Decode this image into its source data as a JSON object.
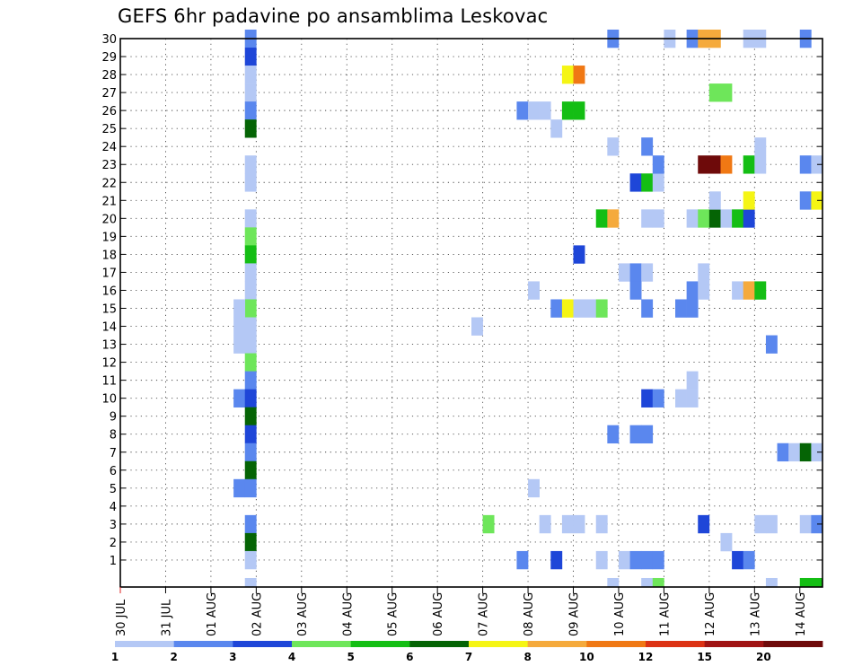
{
  "chart_data": {
    "type": "heatmap",
    "title": "GEFS 6hr padavine po ansamblima Leskovac",
    "y_labels": [
      "1",
      "2",
      "3",
      "4",
      "5",
      "6",
      "7",
      "8",
      "9",
      "10",
      "11",
      "12",
      "13",
      "14",
      "15",
      "16",
      "17",
      "18",
      "19",
      "20",
      "21",
      "22",
      "23",
      "24",
      "25",
      "26",
      "27",
      "28",
      "29",
      "30"
    ],
    "x_labels": [
      "30 JUL",
      "31 JUL",
      "01 AUG",
      "02 AUG",
      "03 AUG",
      "04 AUG",
      "05 AUG",
      "06 AUG",
      "07 AUG",
      "08 AUG",
      "09 AUG",
      "10 AUG",
      "11 AUG",
      "12 AUG",
      "13 AUG",
      "14 AUG"
    ],
    "time_steps": 62,
    "steps_per_day": 4,
    "legend": {
      "labels": [
        "1",
        "2",
        "3",
        "4",
        "5",
        "6",
        "7",
        "8",
        "10",
        "12",
        "15",
        "20"
      ],
      "colors": [
        "#b4c8f5",
        "#5a87ee",
        "#1e46d8",
        "#6ee65a",
        "#14be14",
        "#056405",
        "#f5f514",
        "#f5aa3c",
        "#f07814",
        "#dc3214",
        "#a01414",
        "#6e0a0a"
      ]
    },
    "cells": [
      {
        "x": 11,
        "m": 30,
        "c": 1
      },
      {
        "x": 11,
        "m": 29,
        "c": 2
      },
      {
        "x": 11,
        "m": 28,
        "c": 0
      },
      {
        "x": 11,
        "m": 27,
        "c": 0
      },
      {
        "x": 11,
        "m": 26,
        "c": 1
      },
      {
        "x": 11,
        "m": 25,
        "c": 5
      },
      {
        "x": 11,
        "m": 23,
        "c": 0
      },
      {
        "x": 11,
        "m": 22,
        "c": 0
      },
      {
        "x": 11,
        "m": 20,
        "c": 0
      },
      {
        "x": 11,
        "m": 19,
        "c": 3
      },
      {
        "x": 11,
        "m": 18,
        "c": 4
      },
      {
        "x": 11,
        "m": 17,
        "c": 0
      },
      {
        "x": 11,
        "m": 16,
        "c": 0
      },
      {
        "x": 11,
        "m": 15,
        "c": 3
      },
      {
        "x": 10,
        "m": 15,
        "c": 0
      },
      {
        "x": 10,
        "m": 14,
        "c": 0
      },
      {
        "x": 11,
        "m": 14,
        "c": 0
      },
      {
        "x": 10,
        "m": 13,
        "c": 0
      },
      {
        "x": 11,
        "m": 13,
        "c": 0
      },
      {
        "x": 11,
        "m": 12,
        "c": 3
      },
      {
        "x": 11,
        "m": 11,
        "c": 1
      },
      {
        "x": 10,
        "m": 10,
        "c": 1
      },
      {
        "x": 11,
        "m": 10,
        "c": 2
      },
      {
        "x": 11,
        "m": 9,
        "c": 5
      },
      {
        "x": 11,
        "m": 8,
        "c": 2
      },
      {
        "x": 11,
        "m": 7,
        "c": 1
      },
      {
        "x": 11,
        "m": 6,
        "c": 5
      },
      {
        "x": 10,
        "m": 5,
        "c": 1
      },
      {
        "x": 11,
        "m": 5,
        "c": 1
      },
      {
        "x": 11,
        "m": 3,
        "c": 1
      },
      {
        "x": 11,
        "m": 2,
        "c": 5
      },
      {
        "x": 11,
        "m": 1,
        "c": 0
      },
      {
        "x": 11,
        "m": 0,
        "c": 0
      },
      {
        "x": 31,
        "m": 14,
        "c": 0
      },
      {
        "x": 32,
        "m": 3,
        "c": 3
      },
      {
        "x": 35,
        "m": 26,
        "c": 1
      },
      {
        "x": 36,
        "m": 26,
        "c": 0
      },
      {
        "x": 37,
        "m": 26,
        "c": 0
      },
      {
        "x": 36,
        "m": 16,
        "c": 0
      },
      {
        "x": 36,
        "m": 5,
        "c": 0
      },
      {
        "x": 37,
        "m": 3,
        "c": 0
      },
      {
        "x": 35,
        "m": 1,
        "c": 1
      },
      {
        "x": 38,
        "m": 25,
        "c": 0
      },
      {
        "x": 38,
        "m": 15,
        "c": 1
      },
      {
        "x": 38,
        "m": 1,
        "c": 2
      },
      {
        "x": 39,
        "m": 28,
        "c": 6
      },
      {
        "x": 40,
        "m": 28,
        "c": 8
      },
      {
        "x": 39,
        "m": 26,
        "c": 4
      },
      {
        "x": 40,
        "m": 26,
        "c": 4
      },
      {
        "x": 40,
        "m": 18,
        "c": 2
      },
      {
        "x": 39,
        "m": 15,
        "c": 6
      },
      {
        "x": 40,
        "m": 15,
        "c": 0
      },
      {
        "x": 39,
        "m": 3,
        "c": 0
      },
      {
        "x": 40,
        "m": 3,
        "c": 0
      },
      {
        "x": 41,
        "m": 15,
        "c": 0
      },
      {
        "x": 42,
        "m": 15,
        "c": 3
      },
      {
        "x": 42,
        "m": 20,
        "c": 4
      },
      {
        "x": 43,
        "m": 20,
        "c": 7
      },
      {
        "x": 42,
        "m": 3,
        "c": 0
      },
      {
        "x": 42,
        "m": 1,
        "c": 0
      },
      {
        "x": 43,
        "m": 30,
        "c": 1
      },
      {
        "x": 43,
        "m": 24,
        "c": 0
      },
      {
        "x": 43,
        "m": 8,
        "c": 1
      },
      {
        "x": 43,
        "m": 0,
        "c": 0
      },
      {
        "x": 44,
        "m": 17,
        "c": 0
      },
      {
        "x": 45,
        "m": 17,
        "c": 1
      },
      {
        "x": 46,
        "m": 17,
        "c": 0
      },
      {
        "x": 45,
        "m": 16,
        "c": 1
      },
      {
        "x": 44,
        "m": 1,
        "c": 0
      },
      {
        "x": 45,
        "m": 1,
        "c": 1
      },
      {
        "x": 46,
        "m": 1,
        "c": 1
      },
      {
        "x": 47,
        "m": 1,
        "c": 1
      },
      {
        "x": 45,
        "m": 8,
        "c": 1
      },
      {
        "x": 46,
        "m": 8,
        "c": 1
      },
      {
        "x": 45,
        "m": 22,
        "c": 2
      },
      {
        "x": 46,
        "m": 22,
        "c": 4
      },
      {
        "x": 47,
        "m": 22,
        "c": 0
      },
      {
        "x": 46,
        "m": 24,
        "c": 1
      },
      {
        "x": 47,
        "m": 23,
        "c": 1
      },
      {
        "x": 46,
        "m": 20,
        "c": 0
      },
      {
        "x": 47,
        "m": 20,
        "c": 0
      },
      {
        "x": 46,
        "m": 15,
        "c": 1
      },
      {
        "x": 46,
        "m": 10,
        "c": 2
      },
      {
        "x": 47,
        "m": 10,
        "c": 1
      },
      {
        "x": 46,
        "m": 0,
        "c": 0
      },
      {
        "x": 47,
        "m": 0,
        "c": 3
      },
      {
        "x": 48,
        "m": 30,
        "c": 0
      },
      {
        "x": 49,
        "m": 15,
        "c": 1
      },
      {
        "x": 50,
        "m": 15,
        "c": 1
      },
      {
        "x": 50,
        "m": 16,
        "c": 1
      },
      {
        "x": 51,
        "m": 17,
        "c": 0
      },
      {
        "x": 51,
        "m": 16,
        "c": 0
      },
      {
        "x": 50,
        "m": 20,
        "c": 0
      },
      {
        "x": 51,
        "m": 20,
        "c": 3
      },
      {
        "x": 49,
        "m": 10,
        "c": 0
      },
      {
        "x": 50,
        "m": 10,
        "c": 0
      },
      {
        "x": 50,
        "m": 11,
        "c": 0
      },
      {
        "x": 51,
        "m": 3,
        "c": 2
      },
      {
        "x": 50,
        "m": 30,
        "c": 1
      },
      {
        "x": 51,
        "m": 30,
        "c": 7
      },
      {
        "x": 51,
        "m": 23,
        "c": 11
      },
      {
        "x": 52,
        "m": 23,
        "c": 11
      },
      {
        "x": 52,
        "m": 20,
        "c": 5
      },
      {
        "x": 52,
        "m": 21,
        "c": 0
      },
      {
        "x": 52,
        "m": 27,
        "c": 3
      },
      {
        "x": 53,
        "m": 27,
        "c": 3
      },
      {
        "x": 52,
        "m": 30,
        "c": 7
      },
      {
        "x": 53,
        "m": 23,
        "c": 8
      },
      {
        "x": 53,
        "m": 20,
        "c": 0
      },
      {
        "x": 54,
        "m": 20,
        "c": 4
      },
      {
        "x": 55,
        "m": 20,
        "c": 2
      },
      {
        "x": 54,
        "m": 16,
        "c": 0
      },
      {
        "x": 55,
        "m": 16,
        "c": 7
      },
      {
        "x": 56,
        "m": 16,
        "c": 4
      },
      {
        "x": 53,
        "m": 2,
        "c": 0
      },
      {
        "x": 54,
        "m": 1,
        "c": 2
      },
      {
        "x": 55,
        "m": 1,
        "c": 1
      },
      {
        "x": 55,
        "m": 23,
        "c": 4
      },
      {
        "x": 55,
        "m": 21,
        "c": 6
      },
      {
        "x": 56,
        "m": 23,
        "c": 0
      },
      {
        "x": 56,
        "m": 24,
        "c": 0
      },
      {
        "x": 55,
        "m": 30,
        "c": 0
      },
      {
        "x": 56,
        "m": 30,
        "c": 0
      },
      {
        "x": 56,
        "m": 3,
        "c": 0
      },
      {
        "x": 57,
        "m": 3,
        "c": 0
      },
      {
        "x": 57,
        "m": 13,
        "c": 1
      },
      {
        "x": 57,
        "m": 0,
        "c": 0
      },
      {
        "x": 58,
        "m": 7,
        "c": 1
      },
      {
        "x": 59,
        "m": 7,
        "c": 0
      },
      {
        "x": 60,
        "m": 7,
        "c": 5
      },
      {
        "x": 61,
        "m": 7,
        "c": 0
      },
      {
        "x": 60,
        "m": 3,
        "c": 0
      },
      {
        "x": 61,
        "m": 3,
        "c": 1
      },
      {
        "x": 60,
        "m": 0,
        "c": 4
      },
      {
        "x": 61,
        "m": 0,
        "c": 4
      },
      {
        "x": 60,
        "m": 23,
        "c": 1
      },
      {
        "x": 61,
        "m": 23,
        "c": 0
      },
      {
        "x": 60,
        "m": 21,
        "c": 1
      },
      {
        "x": 61,
        "m": 21,
        "c": 6
      },
      {
        "x": 60,
        "m": 30,
        "c": 1
      }
    ]
  }
}
